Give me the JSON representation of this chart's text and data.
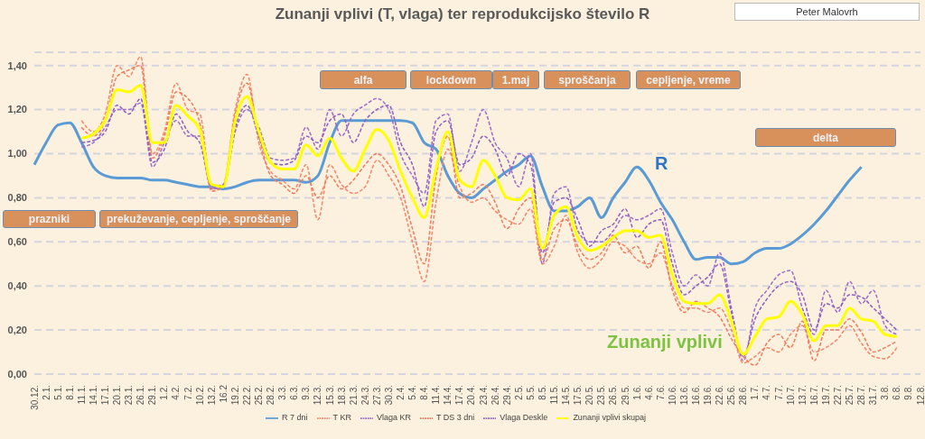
{
  "chart_data": {
    "type": "line",
    "title": "Zunanji vplivi (T, vlaga) ter reprodukcijsko število R",
    "categories": [
      "30.12.",
      "2.1.",
      "5.1.",
      "8.1.",
      "11.1.",
      "14.1.",
      "17.1.",
      "20.1.",
      "23.1.",
      "26.1.",
      "29.1.",
      "1.2.",
      "4.2.",
      "7.2.",
      "10.2.",
      "13.2.",
      "16.2",
      "19.2.",
      "22.2.",
      "25.2.",
      "28.2.",
      "3.3.",
      "6.3.",
      "9.3.",
      "12.3.",
      "15.3.",
      "18.3.",
      "21.3.",
      "24.3.",
      "27.3.",
      "30.3.",
      "2.4.",
      "5.4.",
      "8.4.",
      "11.4.",
      "14.4.",
      "17.4.",
      "20.4.",
      "23.4.",
      "26.4.",
      "29.4.",
      "2.5.",
      "5.5.",
      "8.5.",
      "11.5.",
      "14.5.",
      "17.5.",
      "20.5.",
      "23.5.",
      "26.5.",
      "29.5.",
      "1.6.",
      "4.6.",
      "7.6.",
      "10.6.",
      "13.6.",
      "16.6.",
      "19.6.",
      "22.6.",
      "25.6.",
      "28.6.",
      "1.7.",
      "4.7.",
      "7.7.",
      "10.7.",
      "13.7.",
      "16.7.",
      "19.7.",
      "22.7.",
      "25.7.",
      "28.7.",
      "31.7.",
      "3.8.",
      "6.8.",
      "9.8.",
      "12.8."
    ],
    "series": [
      {
        "name": "R 7 dni",
        "color": "#5b9bd5",
        "line_style": "solid",
        "values": [
          0.95,
          1.05,
          1.13,
          1.14,
          1.05,
          0.94,
          0.9,
          0.89,
          0.89,
          0.89,
          0.88,
          0.88,
          0.87,
          0.86,
          0.85,
          0.85,
          0.84,
          0.85,
          0.87,
          0.88,
          0.88,
          0.88,
          0.88,
          0.87,
          0.9,
          1.05,
          1.15,
          1.15,
          1.15,
          1.15,
          1.15,
          1.15,
          1.14,
          1.05,
          1.02,
          0.9,
          0.82,
          0.8,
          0.84,
          0.88,
          0.92,
          0.95,
          0.99,
          0.85,
          0.74,
          0.74,
          0.76,
          0.8,
          0.71,
          0.8,
          0.87,
          0.94,
          0.88,
          0.78,
          0.7,
          0.6,
          0.52,
          0.53,
          0.53,
          0.5,
          0.51,
          0.55,
          0.57,
          0.57,
          0.59,
          0.63,
          0.68,
          0.74,
          0.81,
          0.88,
          0.94,
          null,
          null,
          null,
          null,
          null
        ]
      },
      {
        "name": "T KR",
        "color": "#f4876b",
        "line_style": "dashed",
        "values": [
          null,
          null,
          null,
          null,
          1.15,
          1.1,
          1.18,
          1.4,
          1.35,
          1.44,
          1.0,
          1.1,
          1.32,
          1.2,
          1.18,
          0.84,
          0.86,
          1.2,
          1.36,
          1.05,
          0.92,
          0.88,
          0.84,
          0.95,
          0.7,
          0.95,
          0.86,
          0.82,
          0.85,
          0.97,
          0.9,
          0.8,
          0.6,
          0.42,
          0.78,
          1.02,
          0.85,
          0.78,
          0.8,
          0.74,
          0.7,
          0.68,
          0.75,
          0.5,
          0.58,
          0.72,
          0.55,
          0.48,
          0.52,
          0.6,
          0.58,
          0.52,
          0.5,
          0.55,
          0.4,
          0.3,
          0.3,
          0.28,
          0.3,
          0.2,
          0.05,
          0.08,
          0.12,
          0.1,
          0.18,
          0.22,
          0.1,
          0.12,
          0.16,
          0.22,
          0.14,
          0.08,
          0.07,
          0.12,
          null,
          null
        ]
      },
      {
        "name": "Vlaga KR",
        "color": "#9b6bcc",
        "line_style": "dashed",
        "values": [
          null,
          null,
          null,
          null,
          1.03,
          1.05,
          1.12,
          1.2,
          1.2,
          1.23,
          0.94,
          1.05,
          1.15,
          1.08,
          1.08,
          0.84,
          0.85,
          1.1,
          1.2,
          1.12,
          0.98,
          0.97,
          0.98,
          1.12,
          1.02,
          1.2,
          1.08,
          1.18,
          1.22,
          1.25,
          1.2,
          1.0,
          0.9,
          0.82,
          1.15,
          1.18,
          0.92,
          1.05,
          1.2,
          1.05,
          0.98,
          0.85,
          1.0,
          0.5,
          0.82,
          0.85,
          0.65,
          0.6,
          0.6,
          0.65,
          0.72,
          0.7,
          0.72,
          0.75,
          0.55,
          0.4,
          0.45,
          0.4,
          0.55,
          0.3,
          0.06,
          0.3,
          0.38,
          0.45,
          0.47,
          0.3,
          0.18,
          0.38,
          0.28,
          0.42,
          0.32,
          0.38,
          0.22,
          0.18,
          null,
          null
        ]
      },
      {
        "name": "T DS 3 dni",
        "color": "#f07b5c",
        "line_style": "dashed",
        "values": [
          null,
          null,
          null,
          null,
          1.12,
          1.08,
          1.15,
          1.35,
          1.38,
          1.4,
          0.98,
          1.08,
          1.28,
          1.25,
          1.14,
          0.83,
          0.85,
          1.18,
          1.32,
          1.08,
          0.9,
          0.86,
          0.82,
          0.9,
          0.8,
          0.9,
          0.84,
          0.88,
          0.95,
          1.0,
          0.95,
          0.85,
          0.66,
          0.5,
          0.9,
          1.08,
          0.8,
          0.82,
          0.86,
          0.78,
          0.66,
          0.75,
          0.8,
          0.52,
          0.66,
          0.7,
          0.58,
          0.52,
          0.55,
          0.63,
          0.55,
          0.58,
          0.48,
          0.6,
          0.38,
          0.28,
          0.33,
          0.3,
          0.26,
          0.16,
          0.08,
          0.04,
          0.14,
          0.18,
          0.12,
          0.24,
          0.06,
          0.2,
          0.2,
          0.25,
          0.19,
          0.1,
          0.12,
          0.15,
          null,
          null
        ]
      },
      {
        "name": "Vlaga Deskle",
        "color": "#8e5fc0",
        "line_style": "dashed",
        "values": [
          null,
          null,
          null,
          null,
          1.05,
          1.06,
          1.1,
          1.22,
          1.18,
          1.25,
          0.96,
          1.02,
          1.18,
          1.1,
          1.05,
          0.85,
          0.86,
          1.12,
          1.22,
          1.08,
          0.96,
          0.95,
          0.97,
          1.08,
          1.05,
          1.15,
          1.18,
          1.05,
          1.15,
          1.2,
          1.22,
          1.05,
          0.95,
          0.76,
          1.1,
          1.15,
          0.95,
          0.98,
          1.08,
          1.02,
          0.9,
          1.0,
          0.95,
          0.55,
          0.78,
          0.8,
          0.7,
          0.58,
          0.65,
          0.68,
          0.75,
          0.62,
          0.68,
          0.7,
          0.5,
          0.36,
          0.4,
          0.44,
          0.5,
          0.28,
          0.08,
          0.25,
          0.34,
          0.4,
          0.42,
          0.36,
          0.2,
          0.32,
          0.3,
          0.36,
          0.35,
          0.3,
          0.25,
          0.2,
          null,
          null
        ]
      },
      {
        "name": "Zunanji vplivi skupaj",
        "color": "#ffff00",
        "line_style": "solid",
        "values": [
          null,
          null,
          null,
          null,
          1.07,
          1.09,
          1.15,
          1.29,
          1.28,
          1.31,
          1.05,
          1.05,
          1.22,
          1.17,
          1.11,
          0.86,
          0.85,
          1.15,
          1.26,
          1.1,
          0.96,
          0.93,
          0.93,
          1.04,
          0.99,
          1.07,
          0.98,
          0.92,
          1.02,
          1.11,
          1.06,
          0.92,
          0.8,
          0.71,
          0.93,
          1.1,
          0.88,
          0.85,
          0.97,
          0.9,
          0.8,
          0.79,
          0.84,
          0.57,
          0.72,
          0.76,
          0.62,
          0.56,
          0.58,
          0.62,
          0.65,
          0.65,
          0.62,
          0.63,
          0.45,
          0.33,
          0.32,
          0.32,
          0.36,
          0.24,
          0.09,
          0.17,
          0.25,
          0.26,
          0.33,
          0.27,
          0.15,
          0.22,
          0.22,
          0.3,
          0.25,
          0.24,
          0.18,
          0.17,
          null,
          null
        ]
      }
    ],
    "ylim": [
      0,
      1.46
    ],
    "yticks": [
      {
        "value": 0,
        "label": "0,00"
      },
      {
        "value": 0.2,
        "label": "0,20"
      },
      {
        "value": 0.4,
        "label": "0,40"
      },
      {
        "value": 0.6,
        "label": "0,60"
      },
      {
        "value": 0.8,
        "label": "0,80"
      },
      {
        "value": 1.0,
        "label": "1,00"
      },
      {
        "value": 1.2,
        "label": "1,20"
      },
      {
        "value": 1.4,
        "label": "1,40"
      }
    ],
    "grid": "y",
    "legend": "bottom",
    "marker": "none",
    "annotations": [
      "prazniki",
      "prekuževanje, cepljenje, sproščanje",
      "alfa",
      "lockdown",
      "1.maj",
      "sproščanja",
      "cepljenje, vreme",
      "delta",
      "Peter Malovrh",
      "R",
      "Zunanji vplivi"
    ]
  }
}
